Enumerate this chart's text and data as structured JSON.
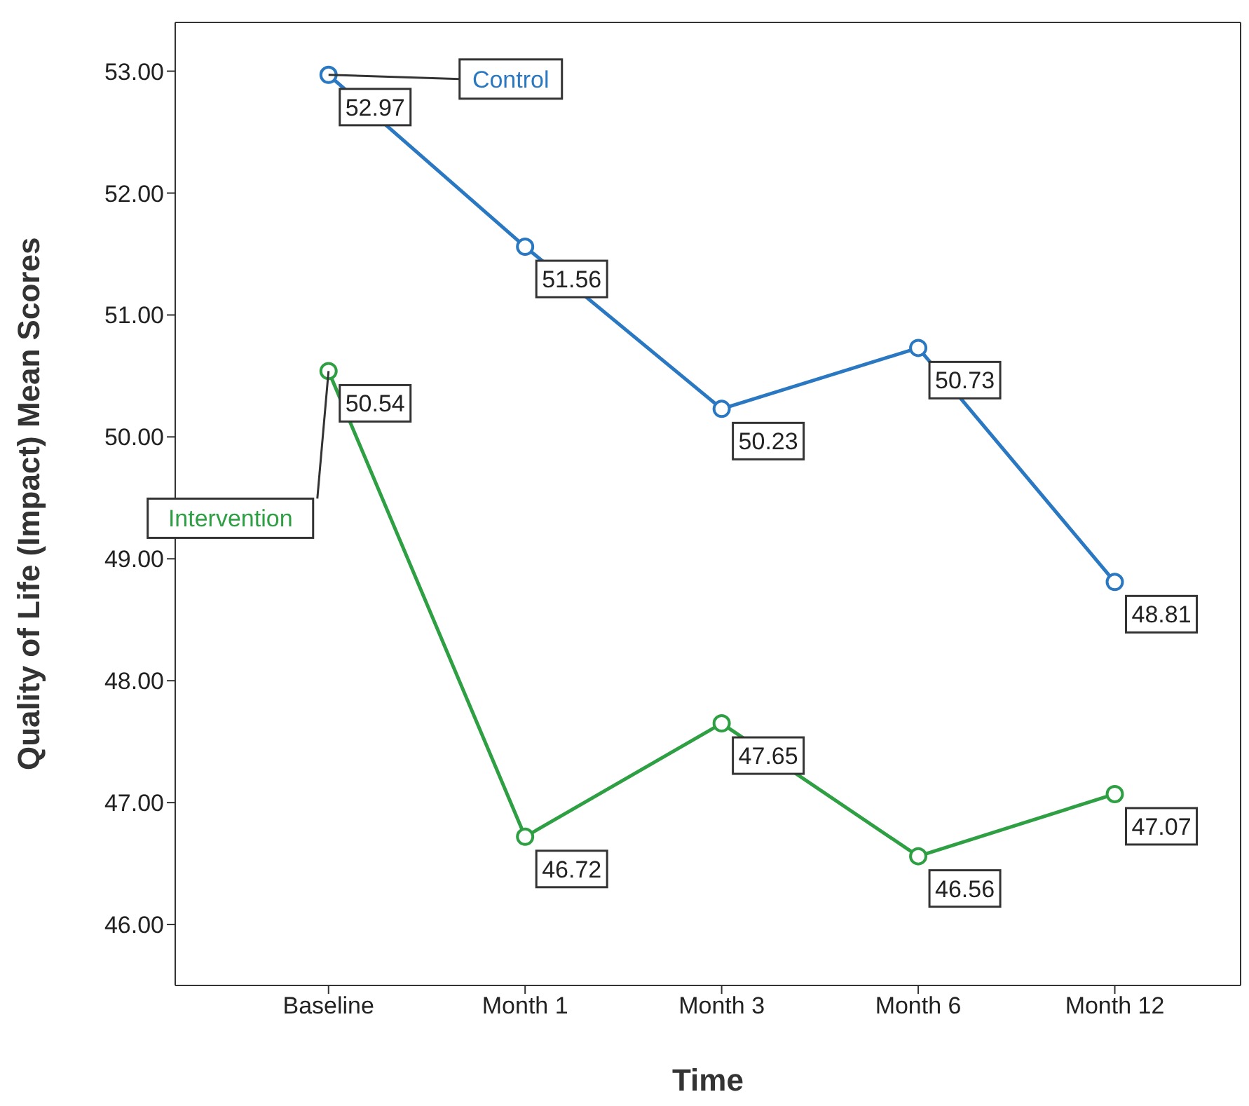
{
  "chart_data": {
    "type": "line",
    "xlabel": "Time",
    "ylabel": "Quality of Life (Impact) Mean Scores",
    "categories": [
      "Baseline",
      "Month 1",
      "Month 3",
      "Month 6",
      "Month 12"
    ],
    "series": [
      {
        "name": "Control",
        "color": "#2a78c2",
        "values": [
          52.97,
          51.56,
          50.23,
          50.73,
          48.81
        ]
      },
      {
        "name": "Intervention",
        "color": "#2ea043",
        "values": [
          50.54,
          46.72,
          47.65,
          46.56,
          47.07
        ]
      }
    ],
    "ylim": [
      45.5,
      53.4
    ],
    "yticks": [
      {
        "value": 46,
        "label": "46.00"
      },
      {
        "value": 47,
        "label": "47.00"
      },
      {
        "value": 48,
        "label": "48.00"
      },
      {
        "value": 49,
        "label": "49.00"
      },
      {
        "value": 50,
        "label": "50.00"
      },
      {
        "value": 51,
        "label": "51.00"
      },
      {
        "value": 52,
        "label": "52.00"
      },
      {
        "value": 53,
        "label": "53.00"
      }
    ],
    "data_labels": true,
    "legend": false,
    "grid": false,
    "marker": "circle",
    "line_style": "solid"
  }
}
